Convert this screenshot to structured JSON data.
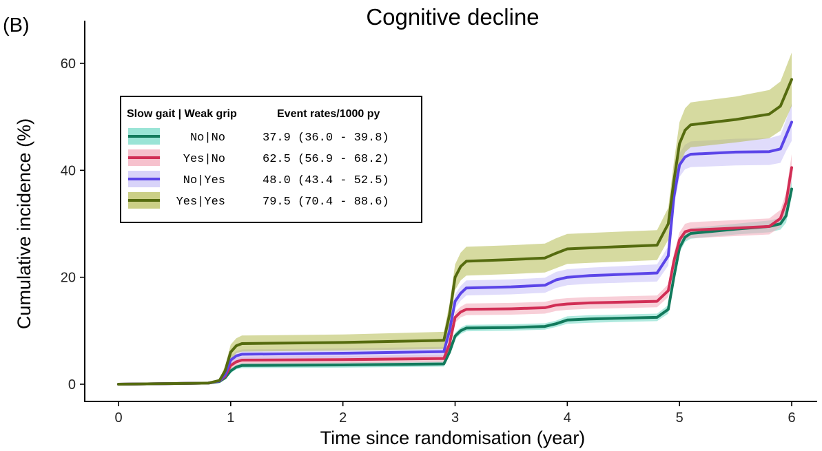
{
  "chart_data": {
    "type": "line",
    "panel_label": "(B)",
    "title": "Cognitive decline",
    "xlabel": "Time since randomisation (year)",
    "ylabel": "Cumulative incidence (%)",
    "xlim": [
      0,
      6
    ],
    "ylim": [
      0,
      60
    ],
    "x_ticks": [
      0,
      1,
      2,
      3,
      4,
      5,
      6
    ],
    "y_ticks": [
      0,
      20,
      40,
      60
    ],
    "grid": false,
    "legend": {
      "placement": "top-left",
      "header_group": "Slow gait | Weak grip",
      "header_rates": "Event rates/1000 py"
    },
    "series": [
      {
        "name": "No|No",
        "rate": "37.9 (36.0 - 39.8)",
        "color": "#127a5c",
        "band_color": "#6fd8c4",
        "x": [
          0,
          0.8,
          0.9,
          0.95,
          1.0,
          1.05,
          1.1,
          2.0,
          2.9,
          2.95,
          3.0,
          3.05,
          3.1,
          3.5,
          3.8,
          3.9,
          4.0,
          4.2,
          4.8,
          4.9,
          4.95,
          5.0,
          5.05,
          5.1,
          5.5,
          5.8,
          5.9,
          5.95,
          6.0
        ],
        "y": [
          0,
          0.2,
          0.5,
          1.2,
          2.5,
          3.2,
          3.5,
          3.6,
          3.8,
          6.0,
          9.0,
          10.0,
          10.5,
          10.6,
          10.8,
          11.3,
          12.0,
          12.2,
          12.5,
          14.0,
          20.0,
          25.5,
          27.5,
          28.2,
          29.0,
          29.5,
          30.0,
          31.5,
          36.5
        ],
        "lower": [
          0,
          0.1,
          0.3,
          0.9,
          2.1,
          2.8,
          3.0,
          3.1,
          3.3,
          5.4,
          8.4,
          9.4,
          9.9,
          10.0,
          10.2,
          10.7,
          11.3,
          11.5,
          11.8,
          13.2,
          19.2,
          24.6,
          26.6,
          27.2,
          28.0,
          28.4,
          28.9,
          30.2,
          35.0
        ],
        "upper": [
          0,
          0.3,
          0.7,
          1.5,
          2.9,
          3.6,
          4.0,
          4.1,
          4.3,
          6.6,
          9.6,
          10.6,
          11.1,
          11.2,
          11.4,
          11.9,
          12.7,
          12.9,
          13.2,
          14.8,
          20.8,
          26.4,
          28.4,
          29.2,
          30.0,
          30.6,
          31.1,
          32.8,
          38.0
        ]
      },
      {
        "name": "Yes|No",
        "rate": "62.5 (56.9 - 68.2)",
        "color": "#d12e55",
        "band_color": "#f2a7b8",
        "x": [
          0,
          0.8,
          0.9,
          0.95,
          1.0,
          1.05,
          1.1,
          2.0,
          2.9,
          2.95,
          3.0,
          3.05,
          3.1,
          3.5,
          3.8,
          3.9,
          4.0,
          4.2,
          4.8,
          4.9,
          4.95,
          5.0,
          5.05,
          5.1,
          5.5,
          5.8,
          5.9,
          5.95,
          6.0
        ],
        "y": [
          0,
          0.2,
          0.6,
          1.5,
          3.5,
          4.2,
          4.5,
          4.6,
          4.8,
          7.5,
          12.5,
          13.5,
          14.0,
          14.1,
          14.3,
          14.8,
          15.0,
          15.2,
          15.5,
          17.5,
          23.0,
          27.0,
          28.5,
          28.8,
          29.2,
          29.5,
          31.0,
          34.0,
          40.5
        ],
        "lower": [
          0,
          0.1,
          0.4,
          1.0,
          2.8,
          3.5,
          3.8,
          3.9,
          4.1,
          6.7,
          11.5,
          12.5,
          12.9,
          13.0,
          13.2,
          13.7,
          13.9,
          14.1,
          14.4,
          16.3,
          21.6,
          25.6,
          27.0,
          27.3,
          27.7,
          28.0,
          29.4,
          32.2,
          38.0
        ],
        "upper": [
          0,
          0.3,
          0.8,
          2.0,
          4.2,
          4.9,
          5.2,
          5.3,
          5.5,
          8.3,
          13.5,
          14.5,
          15.1,
          15.2,
          15.4,
          15.9,
          16.1,
          16.3,
          16.6,
          18.7,
          24.4,
          28.4,
          30.0,
          30.3,
          30.7,
          31.0,
          32.6,
          35.8,
          43.0
        ]
      },
      {
        "name": "No|Yes",
        "rate": "48.0 (43.4 - 52.5)",
        "color": "#5b45e8",
        "band_color": "#c7c0f7",
        "x": [
          0,
          0.8,
          0.9,
          0.95,
          1.0,
          1.05,
          1.1,
          2.0,
          2.9,
          2.95,
          3.0,
          3.05,
          3.1,
          3.5,
          3.8,
          3.9,
          4.0,
          4.2,
          4.8,
          4.9,
          4.95,
          5.0,
          5.05,
          5.1,
          5.5,
          5.8,
          5.9,
          5.95,
          6.0
        ],
        "y": [
          0,
          0.2,
          0.6,
          1.8,
          4.5,
          5.3,
          5.6,
          5.8,
          6.1,
          10.0,
          15.5,
          17.0,
          18.0,
          18.2,
          18.5,
          19.5,
          20.0,
          20.3,
          20.8,
          24.0,
          35.0,
          41.0,
          42.5,
          43.0,
          43.4,
          43.5,
          44.0,
          46.5,
          49.0
        ],
        "lower": [
          0,
          0.1,
          0.4,
          1.3,
          3.7,
          4.4,
          4.7,
          4.9,
          5.2,
          9.0,
          14.2,
          15.6,
          16.6,
          16.8,
          17.1,
          18.0,
          18.5,
          18.8,
          19.2,
          22.2,
          33.0,
          38.8,
          40.2,
          40.6,
          40.9,
          41.0,
          41.4,
          43.6,
          45.5
        ],
        "upper": [
          0,
          0.3,
          0.8,
          2.3,
          5.3,
          6.2,
          6.5,
          6.7,
          7.0,
          11.0,
          16.8,
          18.4,
          19.4,
          19.6,
          19.9,
          21.0,
          21.5,
          21.8,
          22.4,
          25.8,
          37.0,
          43.2,
          44.8,
          45.4,
          45.9,
          46.0,
          46.6,
          49.4,
          52.5
        ]
      },
      {
        "name": "Yes|Yes",
        "rate": "79.5 (70.4 - 88.6)",
        "color": "#556b0f",
        "band_color": "#b5bb52",
        "x": [
          0,
          0.8,
          0.9,
          0.95,
          1.0,
          1.05,
          1.1,
          2.0,
          2.9,
          2.95,
          3.0,
          3.05,
          3.1,
          3.5,
          3.8,
          3.9,
          4.0,
          4.2,
          4.8,
          4.9,
          4.95,
          5.0,
          5.05,
          5.1,
          5.5,
          5.8,
          5.9,
          5.95,
          6.0
        ],
        "y": [
          0,
          0.2,
          0.7,
          2.5,
          6.0,
          7.2,
          7.6,
          7.8,
          8.2,
          13.0,
          20.0,
          22.0,
          23.0,
          23.3,
          23.6,
          24.5,
          25.3,
          25.5,
          26.0,
          30.0,
          38.0,
          45.0,
          47.5,
          48.5,
          49.5,
          50.5,
          52.0,
          54.5,
          57.0
        ],
        "lower": [
          0,
          0.1,
          0.4,
          1.6,
          4.6,
          5.8,
          6.1,
          6.3,
          6.6,
          11.0,
          17.6,
          19.4,
          20.3,
          20.6,
          20.9,
          21.7,
          22.5,
          22.7,
          23.2,
          27.0,
          34.5,
          41.0,
          43.4,
          44.3,
          45.2,
          46.0,
          47.4,
          49.7,
          52.0
        ],
        "upper": [
          0,
          0.3,
          1.0,
          3.4,
          7.4,
          8.6,
          9.1,
          9.3,
          9.8,
          15.0,
          22.4,
          24.6,
          25.7,
          26.0,
          26.3,
          27.3,
          28.1,
          28.3,
          28.8,
          33.0,
          41.5,
          49.0,
          51.6,
          52.7,
          53.8,
          55.0,
          56.6,
          59.3,
          62.0
        ]
      }
    ]
  }
}
